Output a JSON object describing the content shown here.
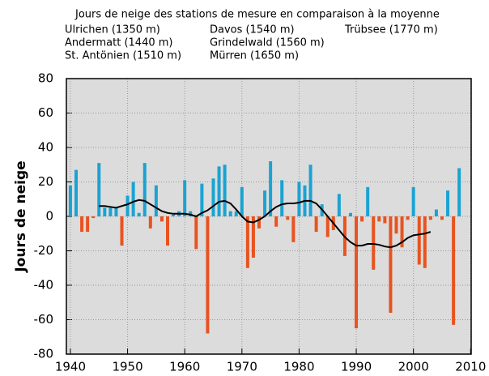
{
  "chart_data": {
    "type": "bar",
    "title": "Jours de neige des stations de mesure en comparaison à la moyenne",
    "stations": [
      "Ulrichen (1350 m)",
      "Davos (1540 m)",
      "Trübsee (1770 m)",
      "Andermatt (1440 m)",
      "Grindelwald (1560 m)",
      "St. Antönien (1510 m)",
      "Mürren (1650 m)"
    ],
    "y_label": "Jours de neige",
    "x": [
      1940,
      1941,
      1942,
      1943,
      1944,
      1945,
      1946,
      1947,
      1948,
      1949,
      1950,
      1951,
      1952,
      1953,
      1954,
      1955,
      1956,
      1957,
      1958,
      1959,
      1960,
      1961,
      1962,
      1963,
      1964,
      1965,
      1966,
      1967,
      1968,
      1969,
      1970,
      1971,
      1972,
      1973,
      1974,
      1975,
      1976,
      1977,
      1978,
      1979,
      1980,
      1981,
      1982,
      1983,
      1984,
      1985,
      1986,
      1987,
      1988,
      1989,
      1990,
      1991,
      1992,
      1993,
      1994,
      1995,
      1996,
      1997,
      1998,
      1999,
      2000,
      2001,
      2002,
      2003,
      2004,
      2005,
      2006,
      2007,
      2008
    ],
    "series": [
      {
        "type": "bar",
        "positive_color": "#1aa3d2",
        "negative_color": "#e8531f",
        "values": [
          18,
          27,
          -9,
          -9,
          -1,
          31,
          5,
          5,
          5,
          -17,
          12,
          20,
          2,
          31,
          -7,
          18,
          -3,
          -17,
          1,
          3,
          21,
          3,
          -19,
          19,
          -68,
          22,
          29,
          30,
          3,
          3,
          17,
          -30,
          -24,
          -7,
          15,
          32,
          -6,
          21,
          -2,
          -15,
          20,
          18,
          30,
          -9,
          7,
          -12,
          -8,
          13,
          -23,
          2,
          -65,
          -3,
          17,
          -31,
          -3,
          -4,
          -56,
          -10,
          -18,
          -2,
          17,
          -28,
          -30,
          -2,
          4,
          -2,
          15,
          -63,
          28
        ]
      },
      {
        "type": "line",
        "color": "#000000",
        "x": [
          1945,
          1946,
          1947,
          1948,
          1949,
          1950,
          1951,
          1952,
          1953,
          1954,
          1955,
          1956,
          1957,
          1958,
          1959,
          1960,
          1961,
          1962,
          1963,
          1964,
          1965,
          1966,
          1967,
          1968,
          1969,
          1970,
          1971,
          1972,
          1973,
          1974,
          1975,
          1976,
          1977,
          1978,
          1979,
          1980,
          1981,
          1982,
          1983,
          1984,
          1985,
          1986,
          1987,
          1988,
          1989,
          1990,
          1991,
          1992,
          1993,
          1994,
          1995,
          1996,
          1997,
          1998,
          1999,
          2000,
          2001,
          2002,
          2003
        ],
        "values": [
          6,
          6,
          5.5,
          5,
          6,
          7,
          8.5,
          9.5,
          9,
          7,
          5,
          3,
          2,
          1.5,
          1.5,
          1.5,
          1,
          0,
          2,
          3.5,
          6,
          8.5,
          9,
          7.5,
          4,
          0,
          -3,
          -3.5,
          -2,
          0,
          3,
          5.5,
          7,
          7.5,
          7.5,
          8,
          9,
          9,
          7.5,
          4,
          0,
          -4,
          -8,
          -12,
          -15,
          -17,
          -17,
          -16,
          -16,
          -16.5,
          -17.5,
          -18,
          -17,
          -15,
          -12.5,
          -11,
          -10.5,
          -10,
          -9
        ]
      }
    ],
    "xlim": [
      1939.3,
      2010.1
    ],
    "xticks": [
      1940,
      1950,
      1960,
      1970,
      1980,
      1990,
      2000,
      2010
    ],
    "ylim": [
      -80,
      80
    ],
    "yticks": [
      -80,
      -60,
      -40,
      -20,
      0,
      20,
      40,
      60,
      80
    ],
    "grid": true
  }
}
